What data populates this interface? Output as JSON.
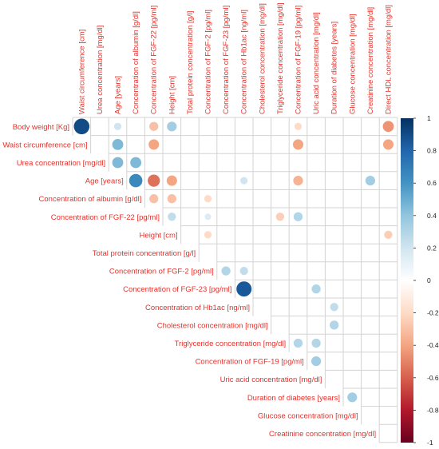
{
  "chart_data": {
    "type": "heatmap",
    "style": "corrplot-circle-upper",
    "column_labels": [
      "Waist circumference [cm]",
      "Urea concentration [mg/dl]",
      "Age [years]",
      "Concentration of albumin [g/dl]",
      "Concentration of FGF-22 [pg/ml]",
      "Height [cm]",
      "Total protein concentration [g/l]",
      "Concentration of FGF-2 [pg/ml]",
      "Concentration of FGF-23 [pg/ml]",
      "Concentration of Hb1ac [ng/ml]",
      "Cholesterol concentration [mg/dl]",
      "Triglyceride concentration [mg/dl]",
      "Concentration of FGF-19 [pg/ml]",
      "Uric acid concentration [mg/dl]",
      "Duration of diabetes [years]",
      "Glucose concentration [mg/dl]",
      "Creatinine concentration [mg/dl]",
      "Direct HDL concentration [mg/dl]"
    ],
    "row_labels": [
      "Body weight [Kg]",
      "Waist circumference [cm]",
      "Urea concentration [mg/dl]",
      "Age [years]",
      "Concentration of albumin [g/dl]",
      "Concentration of FGF-22 [pg/ml]",
      "Height [cm]",
      "Total protein concentration [g/l]",
      "Concentration of FGF-2 [pg/ml]",
      "Concentration of FGF-23 [pg/ml]",
      "Concentration of Hb1ac [ng/ml]",
      "Cholesterol concentration [mg/dl]",
      "Triglyceride concentration  [mg/dl]",
      "Concentration of FGF-19 [pg/ml]",
      "Uric acid concentration  [mg/dl]",
      "Duration of diabetes [years]",
      "Glucose concentration  [mg/dl]",
      "Creatinine concentration  [mg/dl]"
    ],
    "cells": [
      {
        "row": 0,
        "col": 0,
        "value": 0.9
      },
      {
        "row": 0,
        "col": 2,
        "value": 0.2
      },
      {
        "row": 0,
        "col": 4,
        "value": -0.3
      },
      {
        "row": 0,
        "col": 5,
        "value": 0.35
      },
      {
        "row": 0,
        "col": 12,
        "value": -0.2
      },
      {
        "row": 0,
        "col": 17,
        "value": -0.45
      },
      {
        "row": 1,
        "col": 2,
        "value": 0.45
      },
      {
        "row": 1,
        "col": 4,
        "value": -0.4
      },
      {
        "row": 1,
        "col": 12,
        "value": -0.4
      },
      {
        "row": 1,
        "col": 17,
        "value": -0.4
      },
      {
        "row": 2,
        "col": 2,
        "value": 0.45
      },
      {
        "row": 2,
        "col": 3,
        "value": 0.45
      },
      {
        "row": 3,
        "col": 3,
        "value": 0.65
      },
      {
        "row": 3,
        "col": 4,
        "value": -0.55
      },
      {
        "row": 3,
        "col": 5,
        "value": -0.4
      },
      {
        "row": 3,
        "col": 9,
        "value": 0.2
      },
      {
        "row": 3,
        "col": 12,
        "value": -0.35
      },
      {
        "row": 3,
        "col": 16,
        "value": 0.35
      },
      {
        "row": 4,
        "col": 4,
        "value": -0.3
      },
      {
        "row": 4,
        "col": 5,
        "value": -0.3
      },
      {
        "row": 4,
        "col": 7,
        "value": -0.2
      },
      {
        "row": 5,
        "col": 5,
        "value": 0.25
      },
      {
        "row": 5,
        "col": 7,
        "value": 0.15
      },
      {
        "row": 5,
        "col": 11,
        "value": -0.25
      },
      {
        "row": 5,
        "col": 12,
        "value": 0.3
      },
      {
        "row": 6,
        "col": 7,
        "value": -0.2
      },
      {
        "row": 6,
        "col": 17,
        "value": -0.25
      },
      {
        "row": 8,
        "col": 8,
        "value": 0.3
      },
      {
        "row": 8,
        "col": 9,
        "value": 0.25
      },
      {
        "row": 9,
        "col": 9,
        "value": 0.85
      },
      {
        "row": 9,
        "col": 13,
        "value": 0.3
      },
      {
        "row": 10,
        "col": 14,
        "value": 0.25
      },
      {
        "row": 11,
        "col": 14,
        "value": 0.3
      },
      {
        "row": 12,
        "col": 12,
        "value": 0.3
      },
      {
        "row": 12,
        "col": 13,
        "value": 0.3
      },
      {
        "row": 13,
        "col": 13,
        "value": 0.35
      },
      {
        "row": 15,
        "col": 15,
        "value": 0.35
      }
    ],
    "color_scale": {
      "min": -1,
      "max": 1,
      "ticks": [
        "1",
        "0.8",
        "0.6",
        "0.4",
        "0.2",
        "0",
        "-0.2",
        "-0.4",
        "-0.6",
        "-0.8",
        "-1"
      ],
      "colors": [
        "#67001f",
        "#b2182b",
        "#d6604d",
        "#f4a582",
        "#fddbc7",
        "#ffffff",
        "#d1e5f0",
        "#92c5de",
        "#4393c3",
        "#2166ac",
        "#053061"
      ]
    },
    "colors": {
      "label": "#e8302a",
      "grid": "#d3d3d3",
      "tick": "#222222"
    }
  }
}
